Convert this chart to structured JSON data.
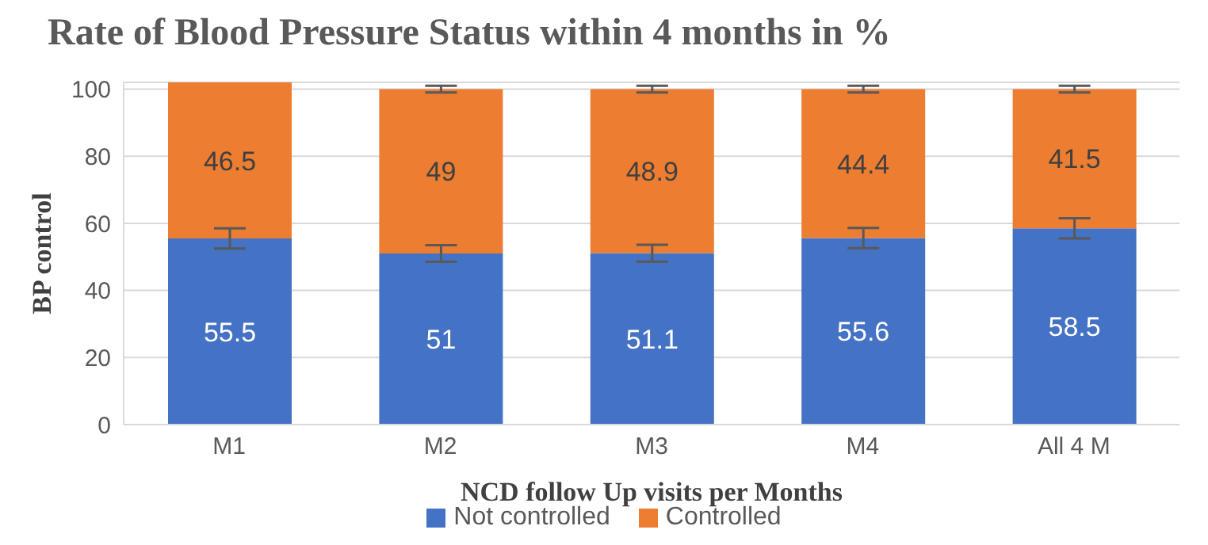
{
  "chart_data": {
    "type": "bar",
    "title": "Rate of Blood Pressure Status within 4 months in %",
    "xlabel": "NCD follow Up visits  per Months",
    "ylabel": "BP control",
    "categories": [
      "M1",
      "M2",
      "M3",
      "M4",
      "All 4 M"
    ],
    "stacked": true,
    "data_labels": true,
    "grid": "y",
    "legend": "bottom",
    "ylim": [
      0,
      102
    ],
    "yticks": [
      0,
      20,
      40,
      60,
      80,
      100
    ],
    "series": [
      {
        "name": "Not controlled",
        "color": "#4472c4",
        "values": [
          55.5,
          51,
          51.1,
          55.6,
          58.5
        ],
        "errors": [
          3,
          2.5,
          2.5,
          3,
          3
        ]
      },
      {
        "name": "Controlled",
        "color": "#ed7d31",
        "values": [
          46.5,
          49,
          48.9,
          44.4,
          41.5
        ],
        "errors": [
          null,
          1,
          1,
          1,
          1
        ]
      }
    ]
  }
}
